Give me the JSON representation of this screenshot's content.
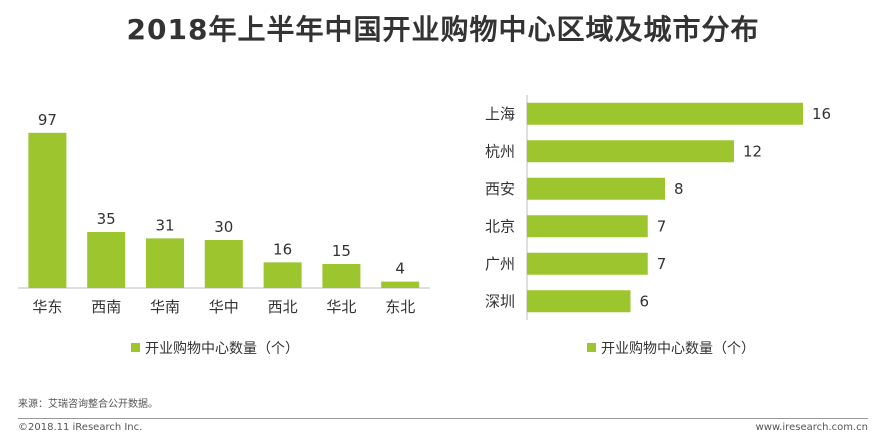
{
  "title": "2018年上半年中国开业购物中心区域及城市分布",
  "source": "来源：艾瑞咨询整合公开数据。",
  "copyright": "©2018.11 iResearch Inc.",
  "website": "www.iresearch.com.cn",
  "colors": {
    "bar": "#9dc52d",
    "axis": "#bfbfbf",
    "text": "#333333"
  },
  "chart_data": [
    {
      "type": "bar",
      "orientation": "vertical",
      "categories": [
        "华东",
        "西南",
        "华南",
        "华中",
        "西北",
        "华北",
        "东北"
      ],
      "series": [
        {
          "name": "开业购物中心数量（个）",
          "values": [
            97,
            35,
            31,
            30,
            16,
            15,
            4
          ]
        }
      ],
      "ylim": [
        0,
        100
      ],
      "legend": "bottom",
      "grid": false
    },
    {
      "type": "bar",
      "orientation": "horizontal",
      "categories": [
        "上海",
        "杭州",
        "西安",
        "北京",
        "广州",
        "深圳"
      ],
      "series": [
        {
          "name": "开业购物中心数量（个）",
          "values": [
            16,
            12,
            8,
            7,
            7,
            6
          ]
        }
      ],
      "xlim": [
        0,
        16
      ],
      "legend": "bottom",
      "grid": false
    }
  ]
}
